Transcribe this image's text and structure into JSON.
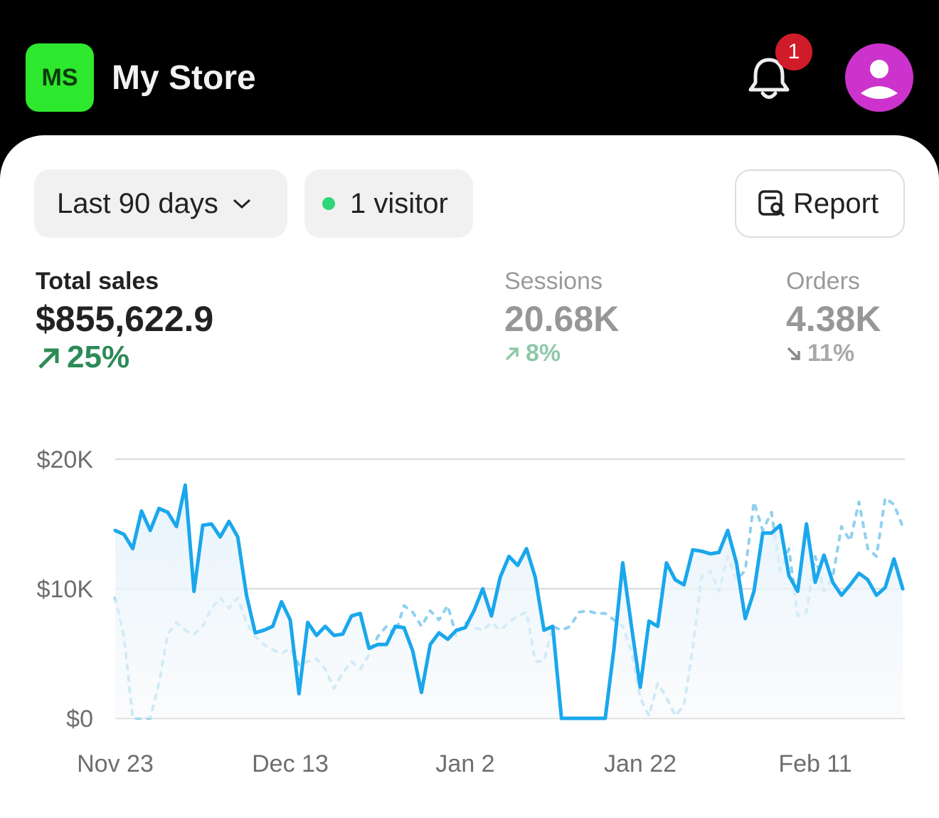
{
  "header": {
    "logo": "MS",
    "store_name": "My Store",
    "notification_count": "1"
  },
  "filters": {
    "date_range": "Last 90 days",
    "visitors": "1 visitor",
    "report": "Report"
  },
  "metrics": [
    {
      "label": "Total sales",
      "value": "$855,622.9",
      "change": "25%",
      "direction": "up"
    },
    {
      "label": "Sessions",
      "value": "20.68K",
      "change": "8%",
      "direction": "up"
    },
    {
      "label": "Orders",
      "value": "4.38K",
      "change": "11%",
      "direction": "down"
    }
  ],
  "chart_data": {
    "type": "line",
    "categories": [
      "Nov 23",
      null,
      null,
      null,
      null,
      null,
      null,
      null,
      null,
      null,
      null,
      null,
      null,
      null,
      null,
      null,
      null,
      null,
      null,
      null,
      "Dec 13",
      null,
      null,
      null,
      null,
      null,
      null,
      null,
      null,
      null,
      null,
      null,
      null,
      null,
      null,
      null,
      null,
      null,
      null,
      null,
      "Jan 2",
      null,
      null,
      null,
      null,
      null,
      null,
      null,
      null,
      null,
      null,
      null,
      null,
      null,
      null,
      null,
      null,
      null,
      null,
      null,
      "Jan 22",
      null,
      null,
      null,
      null,
      null,
      null,
      null,
      null,
      null,
      null,
      null,
      null,
      null,
      null,
      null,
      null,
      null,
      null,
      null,
      "Feb 11",
      null,
      null,
      null,
      null,
      null,
      null,
      null,
      null,
      null,
      null
    ],
    "series": [
      {
        "color": "#1aa7ec",
        "style": "solid",
        "area": true,
        "values": [
          14500,
          14200,
          13100,
          16000,
          14500,
          16200,
          15900,
          14800,
          18000,
          9800,
          14900,
          15000,
          14000,
          15200,
          14000,
          9500,
          6600,
          6800,
          7100,
          9000,
          7600,
          1900,
          7400,
          6400,
          7100,
          6400,
          6500,
          7900,
          8100,
          5400,
          5700,
          5700,
          7100,
          7000,
          5200,
          2000,
          5700,
          6600,
          6100,
          6800,
          7000,
          8300,
          10000,
          7900,
          10900,
          12500,
          11800,
          13100,
          10900,
          6800,
          7100,
          0,
          0,
          0,
          0,
          0,
          0,
          5400,
          12000,
          7100,
          2400,
          7500,
          7100,
          12000,
          10700,
          10300,
          13000,
          12900,
          12700,
          12800,
          14500,
          12000,
          7700,
          9800,
          14300,
          14300,
          14900,
          11000,
          9800,
          15000,
          10500,
          12600,
          10500,
          9500,
          10300,
          11200,
          10700,
          9500,
          10100,
          12300,
          10000
        ]
      },
      {
        "color": "#8fd0ee",
        "style": "dashed",
        "area": false,
        "values": [
          9300,
          6300,
          0,
          0,
          0,
          2700,
          6500,
          7400,
          6800,
          6500,
          7100,
          8500,
          9300,
          8500,
          9300,
          7400,
          6300,
          5700,
          5300,
          5000,
          5400,
          4100,
          4400,
          4600,
          3800,
          2300,
          3500,
          4400,
          3800,
          4900,
          6300,
          7100,
          6500,
          8700,
          8200,
          7100,
          8300,
          7600,
          8700,
          6300,
          7400,
          7000,
          6800,
          7400,
          6800,
          7400,
          7900,
          8200,
          4400,
          4400,
          7100,
          6800,
          7100,
          8200,
          8300,
          8100,
          8100,
          7600,
          7100,
          5200,
          1600,
          200,
          2700,
          1600,
          200,
          1000,
          5400,
          10900,
          11400,
          9800,
          12500,
          10700,
          11400,
          16700,
          14500,
          15900,
          11400,
          13100,
          7900,
          8200,
          12500,
          9800,
          10900,
          14800,
          13700,
          16700,
          13100,
          12500,
          17000,
          16500,
          14800
        ]
      }
    ],
    "ylim": [
      0,
      20000
    ],
    "yticks": [
      {
        "value": 0,
        "label": "$0"
      },
      {
        "value": 10000,
        "label": "$10K"
      },
      {
        "value": 20000,
        "label": "$20K"
      }
    ],
    "grid": true
  }
}
